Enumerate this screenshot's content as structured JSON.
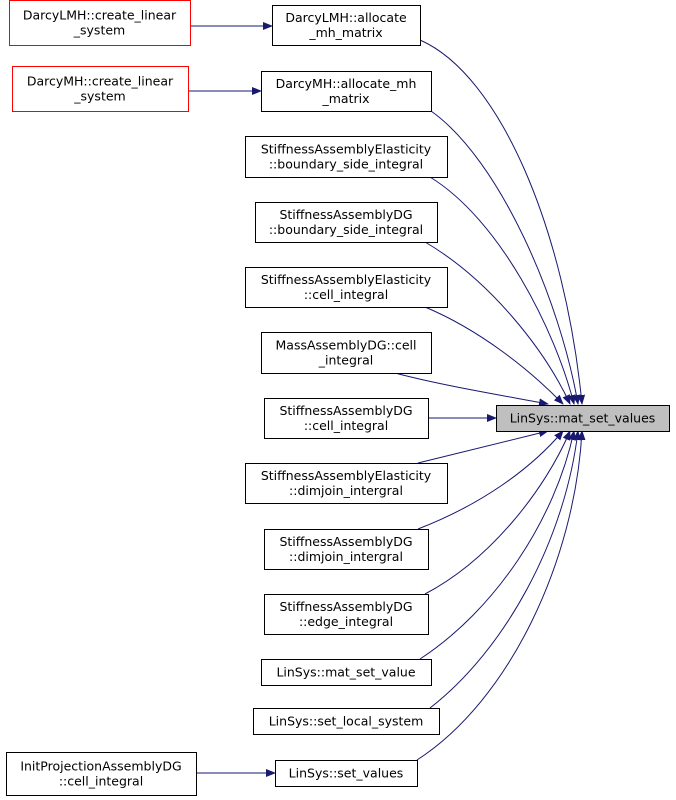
{
  "graph": {
    "target": {
      "id": "mat_set_values",
      "lines": [
        "LinSys::mat_set_values"
      ]
    },
    "nodes": [
      {
        "id": "darcylmh_create",
        "lines": [
          "DarcyLMH::create_linear",
          "_system"
        ],
        "style": "red"
      },
      {
        "id": "darcylmh_alloc",
        "lines": [
          "DarcyLMH::allocate",
          "_mh_matrix"
        ]
      },
      {
        "id": "darcymh_create",
        "lines": [
          "DarcyMH::create_linear",
          "_system"
        ],
        "style": "red"
      },
      {
        "id": "darcymh_alloc",
        "lines": [
          "DarcyMH::allocate_mh",
          "_matrix"
        ]
      },
      {
        "id": "sae_boundary",
        "lines": [
          "StiffnessAssemblyElasticity",
          "::boundary_side_integral"
        ]
      },
      {
        "id": "sadg_boundary",
        "lines": [
          "StiffnessAssemblyDG",
          "::boundary_side_integral"
        ]
      },
      {
        "id": "sae_cell",
        "lines": [
          "StiffnessAssemblyElasticity",
          "::cell_integral"
        ]
      },
      {
        "id": "madg_cell",
        "lines": [
          "MassAssemblyDG::cell",
          "_integral"
        ]
      },
      {
        "id": "sadg_cell",
        "lines": [
          "StiffnessAssemblyDG",
          "::cell_integral"
        ]
      },
      {
        "id": "sae_dimjoin",
        "lines": [
          "StiffnessAssemblyElasticity",
          "::dimjoin_intergral"
        ]
      },
      {
        "id": "sadg_dimjoin",
        "lines": [
          "StiffnessAssemblyDG",
          "::dimjoin_intergral"
        ]
      },
      {
        "id": "sadg_edge",
        "lines": [
          "StiffnessAssemblyDG",
          "::edge_integral"
        ]
      },
      {
        "id": "mat_set_value",
        "lines": [
          "LinSys::mat_set_value"
        ]
      },
      {
        "id": "set_local_system",
        "lines": [
          "LinSys::set_local_system"
        ]
      },
      {
        "id": "initproj_cell",
        "lines": [
          "InitProjectionAssemblyDG",
          "::cell_integral"
        ]
      },
      {
        "id": "set_values",
        "lines": [
          "LinSys::set_values"
        ]
      }
    ],
    "edges": [
      [
        "darcylmh_create",
        "darcylmh_alloc"
      ],
      [
        "darcymh_create",
        "darcymh_alloc"
      ],
      [
        "initproj_cell",
        "set_values"
      ],
      [
        "darcylmh_alloc",
        "mat_set_values"
      ],
      [
        "darcymh_alloc",
        "mat_set_values"
      ],
      [
        "sae_boundary",
        "mat_set_values"
      ],
      [
        "sadg_boundary",
        "mat_set_values"
      ],
      [
        "sae_cell",
        "mat_set_values"
      ],
      [
        "madg_cell",
        "mat_set_values"
      ],
      [
        "sadg_cell",
        "mat_set_values"
      ],
      [
        "sae_dimjoin",
        "mat_set_values"
      ],
      [
        "sadg_dimjoin",
        "mat_set_values"
      ],
      [
        "sadg_edge",
        "mat_set_values"
      ],
      [
        "mat_set_value",
        "mat_set_values"
      ],
      [
        "set_local_system",
        "mat_set_values"
      ],
      [
        "set_values",
        "mat_set_values"
      ]
    ],
    "colors": {
      "edge": "#191970",
      "highlight_border": "#ff0000",
      "target_fill": "#bfbfbf"
    }
  }
}
